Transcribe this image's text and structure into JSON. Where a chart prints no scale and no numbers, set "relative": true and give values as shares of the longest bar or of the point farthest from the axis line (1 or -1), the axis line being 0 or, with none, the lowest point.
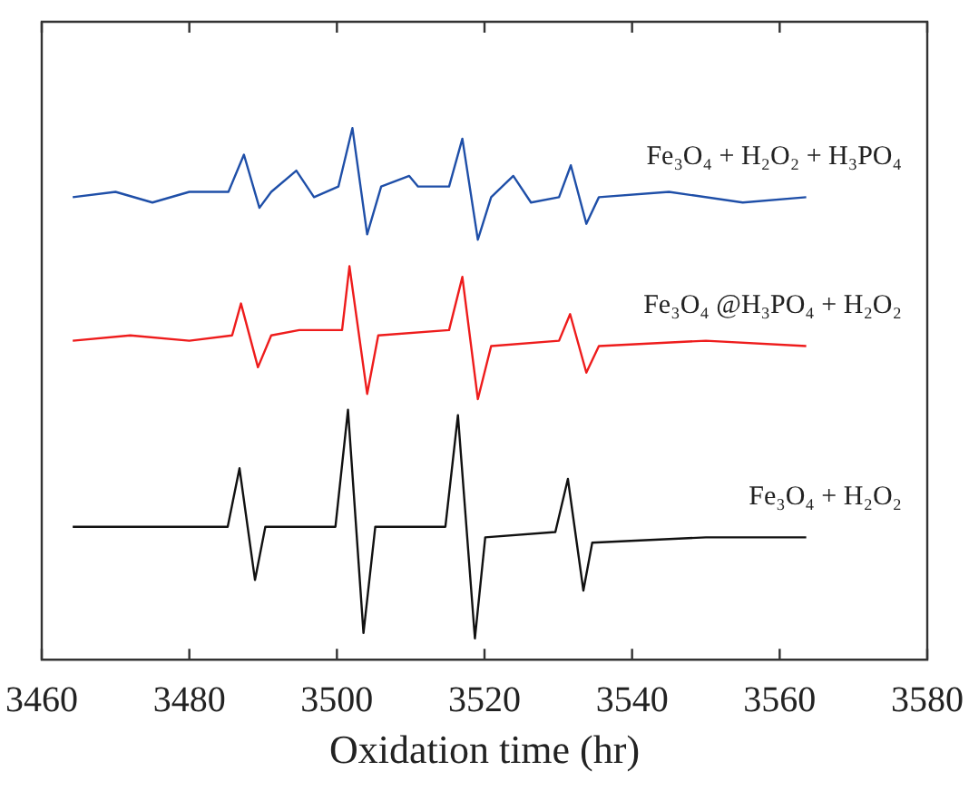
{
  "chart_data": {
    "type": "line",
    "relative": true,
    "xlabel": "Oxidation time (hr)",
    "xlim": [
      3460,
      3580
    ],
    "xticks": [
      3460,
      3480,
      3500,
      3520,
      3540,
      3560,
      3580
    ],
    "grid": false,
    "legend": false,
    "marker": "none",
    "line_style": "solid",
    "series": [
      {
        "name": "Fe₃O₄ + H₂O₂ + H₃PO₄",
        "color": "#1f4fa8",
        "x": [
          3464.2,
          3470,
          3475,
          3480,
          3485.3,
          3487.4,
          3489.5,
          3491.1,
          3494.5,
          3496.9,
          3500.2,
          3502.1,
          3504.1,
          3506.0,
          3509.8,
          3511.0,
          3515.2,
          3517.0,
          3519.1,
          3520.9,
          3523.9,
          3526.3,
          3530.1,
          3531.7,
          3533.8,
          3535.5,
          3545,
          3555,
          3563.6
        ],
        "values": [
          0.87,
          0.88,
          0.86,
          0.88,
          0.88,
          0.95,
          0.85,
          0.88,
          0.92,
          0.87,
          0.89,
          1.0,
          0.8,
          0.89,
          0.91,
          0.89,
          0.89,
          0.98,
          0.79,
          0.87,
          0.91,
          0.86,
          0.87,
          0.93,
          0.82,
          0.87,
          0.88,
          0.86,
          0.87
        ]
      },
      {
        "name": "Fe₃O₄ @H₃PO₄ + H₂O₂",
        "color": "#ee1c1c",
        "x": [
          3464.2,
          3472,
          3480,
          3485.8,
          3487.0,
          3489.3,
          3491.1,
          3494.9,
          3500.7,
          3501.7,
          3504.1,
          3505.6,
          3515.2,
          3517.0,
          3519.1,
          3520.9,
          3530.1,
          3531.6,
          3533.8,
          3535.5,
          3550,
          3563.6
        ],
        "values": [
          0.6,
          0.61,
          0.6,
          0.61,
          0.67,
          0.55,
          0.61,
          0.62,
          0.62,
          0.74,
          0.5,
          0.61,
          0.62,
          0.72,
          0.49,
          0.59,
          0.6,
          0.65,
          0.54,
          0.59,
          0.6,
          0.59
        ]
      },
      {
        "name": "Fe₃O₄ + H₂O₂",
        "color": "#111111",
        "x": [
          3464.2,
          3472,
          3480,
          3485.2,
          3486.8,
          3488.9,
          3490.3,
          3499.8,
          3501.5,
          3503.6,
          3505.2,
          3514.7,
          3516.4,
          3518.7,
          3520.1,
          3529.6,
          3531.3,
          3533.4,
          3534.6,
          3550,
          3563.6
        ],
        "values": [
          0.25,
          0.25,
          0.25,
          0.25,
          0.36,
          0.15,
          0.25,
          0.25,
          0.47,
          0.05,
          0.25,
          0.25,
          0.46,
          0.04,
          0.23,
          0.24,
          0.34,
          0.13,
          0.22,
          0.23,
          0.23
        ]
      }
    ]
  }
}
